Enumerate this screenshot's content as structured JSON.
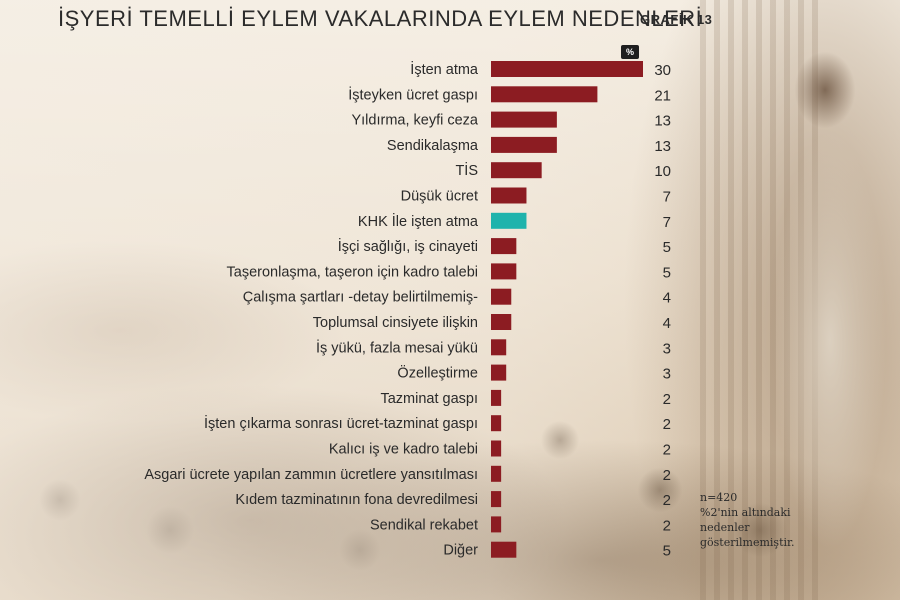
{
  "chart_data": {
    "type": "bar",
    "orientation": "horizontal",
    "title": "İŞYERİ TEMELLİ EYLEM VAKALARINDA EYLEM NEDENLERİ",
    "figure_tag": "GRAFİK 13",
    "unit": "%",
    "categories": [
      "İşten atma",
      "İşteyken ücret gaspı",
      "Yıldırma, keyfi ceza",
      "Sendikalaşma",
      "TİS",
      "Düşük ücret",
      "KHK İle işten atma",
      "İşçi sağlığı, iş cinayeti",
      "Taşeronlaşma, taşeron için kadro talebi",
      "Çalışma şartları -detay belirtilmemiş-",
      "Toplumsal cinsiyete ilişkin",
      "İş yükü, fazla mesai yükü",
      "Özelleştirme",
      "Tazminat gaspı",
      "İşten çıkarma sonrası ücret-tazminat gaspı",
      "Kalıcı iş ve kadro talebi",
      "Asgari ücrete yapılan zammın ücretlere yansıtılması",
      "Kıdem tazminatının fona devredilmesi",
      "Sendikal rekabet",
      "Diğer"
    ],
    "values": [
      30,
      21,
      13,
      13,
      10,
      7,
      7,
      5,
      5,
      4,
      4,
      3,
      3,
      2,
      2,
      2,
      2,
      2,
      2,
      5
    ],
    "colors": {
      "default": "#8c1c22",
      "highlight": "#1fb3ac"
    },
    "highlight_index": 6,
    "xlim": [
      0,
      30
    ],
    "grid": false,
    "note": [
      "n=420",
      "%2'nin altındaki",
      "nedenler",
      "gösterilmemiştir."
    ]
  }
}
